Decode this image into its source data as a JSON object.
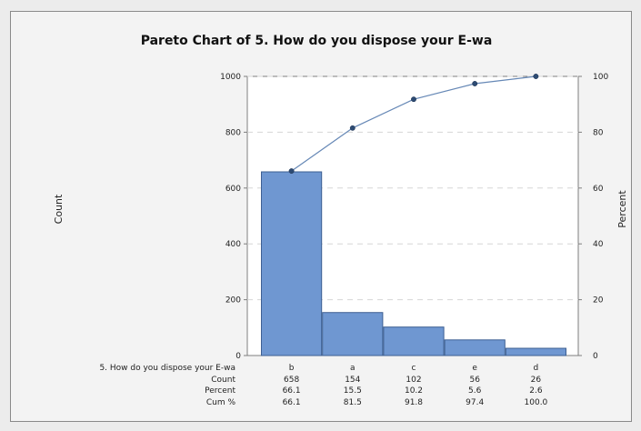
{
  "chart_data": {
    "type": "bar",
    "title": "Pareto Chart of 5. How do you dispose your E-wa",
    "xlabel": "5. How do you dispose your E-wa",
    "ylabel_left": "Count",
    "ylabel_right": "Percent",
    "categories": [
      "b",
      "a",
      "c",
      "e",
      "d"
    ],
    "counts": [
      658,
      154,
      102,
      56,
      26
    ],
    "percent": [
      "66.1",
      "15.5",
      "10.2",
      "5.6",
      "2.6"
    ],
    "cum_percent": [
      "66.1",
      "81.5",
      "91.8",
      "97.4",
      "100.0"
    ],
    "cum_values": [
      66.1,
      81.5,
      91.8,
      97.4,
      100.0
    ],
    "row_labels": [
      "Count",
      "Percent",
      "Cum %"
    ],
    "ylim_left": [
      0,
      1000
    ],
    "ylim_right": [
      0,
      100
    ],
    "yticks_left": [
      "0",
      "200",
      "400",
      "600",
      "800",
      "1000"
    ],
    "yticks_right": [
      "0",
      "20",
      "40",
      "60",
      "80",
      "100"
    ],
    "grid": "horizontal dashed",
    "colors": {
      "bar_fill": "#6f97d1",
      "bar_stroke": "#3d5f92",
      "line": "#6688b6",
      "marker": "#2d4b73",
      "axis": "#7f7f7f",
      "grid": "#d6d6d6"
    }
  }
}
